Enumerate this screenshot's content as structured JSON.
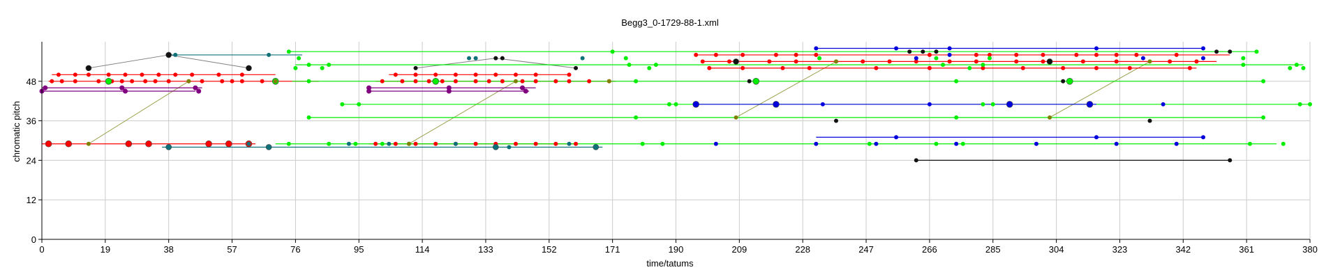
{
  "chart_data": {
    "type": "scatter",
    "title": "Begg3_0-1729-88-1.xml",
    "xlabel": "time/tatums",
    "ylabel": "chromatic pitch",
    "xlim": [
      0,
      380
    ],
    "ylim": [
      0,
      60
    ],
    "x_ticks": [
      0,
      19,
      38,
      57,
      76,
      95,
      114,
      133,
      152,
      171,
      190,
      209,
      228,
      247,
      266,
      285,
      304,
      323,
      342,
      361,
      380
    ],
    "y_ticks": [
      0,
      12,
      24,
      36,
      48
    ],
    "grid": true,
    "colors": {
      "red": "#ff0000",
      "green": "#00ee00",
      "blue": "#0000dd",
      "teal": "#0e7078",
      "purple": "#800080",
      "black": "#111111",
      "gray": "#808080",
      "olive": "#808000",
      "grid": "#cccccc"
    },
    "series": [
      {
        "color": "red",
        "size": 8,
        "lines": [
          [
            0,
            29,
            64,
            29
          ]
        ],
        "points": [
          [
            2,
            29
          ],
          [
            8,
            29
          ],
          [
            26,
            29
          ],
          [
            32,
            29
          ],
          [
            50,
            29
          ],
          [
            56,
            29
          ],
          [
            62,
            29
          ]
        ]
      },
      {
        "color": "red",
        "size": 5,
        "lines": [
          [
            3,
            50,
            70,
            50
          ],
          [
            2,
            48,
            83,
            48
          ]
        ],
        "points": [
          [
            5,
            50
          ],
          [
            10,
            50
          ],
          [
            14,
            50
          ],
          [
            20,
            50
          ],
          [
            25,
            50
          ],
          [
            30,
            50
          ],
          [
            35,
            50
          ],
          [
            40,
            50
          ],
          [
            45,
            50
          ],
          [
            53,
            50
          ],
          [
            60,
            50
          ],
          [
            3,
            48
          ],
          [
            6,
            48
          ],
          [
            10,
            48
          ],
          [
            17,
            48
          ],
          [
            21,
            48
          ],
          [
            24,
            48
          ],
          [
            27,
            48
          ],
          [
            31,
            48
          ],
          [
            34,
            48
          ],
          [
            38,
            48
          ],
          [
            44,
            48
          ],
          [
            48,
            48
          ],
          [
            54,
            48
          ],
          [
            57,
            48
          ],
          [
            60,
            48
          ],
          [
            66,
            48
          ],
          [
            106,
            50
          ],
          [
            112,
            50
          ],
          [
            118,
            50
          ],
          [
            124,
            50
          ],
          [
            130,
            50
          ],
          [
            136,
            50
          ],
          [
            142,
            50
          ],
          [
            148,
            50
          ],
          [
            158,
            50
          ],
          [
            102,
            48
          ],
          [
            108,
            48
          ],
          [
            112,
            48
          ],
          [
            116,
            48
          ],
          [
            120,
            48
          ],
          [
            124,
            48
          ],
          [
            130,
            48
          ],
          [
            134,
            48
          ],
          [
            138,
            48
          ],
          [
            144,
            48
          ],
          [
            148,
            48
          ],
          [
            154,
            48
          ],
          [
            158,
            48
          ],
          [
            164,
            48
          ],
          [
            170,
            48
          ],
          [
            100,
            29
          ],
          [
            106,
            29
          ],
          [
            112,
            29
          ],
          [
            118,
            29
          ],
          [
            124,
            29
          ],
          [
            130,
            29
          ],
          [
            136,
            29
          ],
          [
            142,
            29
          ],
          [
            148,
            29
          ],
          [
            154,
            29
          ],
          [
            160,
            29
          ]
        ]
      },
      {
        "color": "red",
        "size": 5,
        "lines": [
          [
            104,
            50,
            158,
            50
          ],
          [
            100,
            48,
            172,
            48
          ],
          [
            98,
            29,
            160,
            29
          ],
          [
            196,
            56,
            356,
            56
          ],
          [
            198,
            54,
            352,
            54
          ],
          [
            200,
            52,
            346,
            52
          ]
        ],
        "points": [
          [
            196,
            56
          ],
          [
            202,
            56
          ],
          [
            210,
            56
          ],
          [
            220,
            56
          ],
          [
            226,
            56
          ],
          [
            232,
            56
          ],
          [
            266,
            56
          ],
          [
            280,
            56
          ],
          [
            284,
            56
          ],
          [
            292,
            56
          ],
          [
            300,
            56
          ],
          [
            310,
            56
          ],
          [
            316,
            56
          ],
          [
            322,
            56
          ],
          [
            328,
            56
          ],
          [
            340,
            56
          ],
          [
            198,
            54
          ],
          [
            206,
            54
          ],
          [
            218,
            54
          ],
          [
            226,
            54
          ],
          [
            238,
            54
          ],
          [
            246,
            54
          ],
          [
            254,
            54
          ],
          [
            262,
            54
          ],
          [
            272,
            54
          ],
          [
            280,
            54
          ],
          [
            292,
            54
          ],
          [
            300,
            54
          ],
          [
            312,
            54
          ],
          [
            322,
            54
          ],
          [
            338,
            54
          ],
          [
            346,
            54
          ],
          [
            200,
            52
          ],
          [
            210,
            52
          ],
          [
            222,
            52
          ],
          [
            230,
            52
          ],
          [
            250,
            52
          ],
          [
            266,
            52
          ],
          [
            282,
            52
          ],
          [
            294,
            52
          ],
          [
            306,
            52
          ],
          [
            316,
            52
          ],
          [
            326,
            52
          ],
          [
            344,
            52
          ]
        ]
      },
      {
        "color": "green",
        "size": 5,
        "lines": [
          [
            74,
            57,
            364,
            57
          ],
          [
            76,
            53,
            378,
            53
          ],
          [
            75,
            48,
            366,
            48
          ],
          [
            90,
            41,
            380,
            41
          ],
          [
            80,
            37,
            366,
            37
          ],
          [
            70,
            29,
            370,
            29
          ]
        ],
        "points": [
          [
            74,
            57
          ],
          [
            171,
            57
          ],
          [
            364,
            57
          ],
          [
            77,
            55
          ],
          [
            175,
            55
          ],
          [
            233,
            55
          ],
          [
            268,
            55
          ],
          [
            284,
            55
          ],
          [
            360,
            55
          ],
          [
            80,
            53
          ],
          [
            86,
            53
          ],
          [
            84,
            52
          ],
          [
            76,
            52
          ],
          [
            176,
            53
          ],
          [
            182,
            52
          ],
          [
            184,
            53
          ],
          [
            270,
            53
          ],
          [
            278,
            52
          ],
          [
            282,
            53
          ],
          [
            360,
            53
          ],
          [
            374,
            52
          ],
          [
            376,
            53
          ],
          [
            378,
            52
          ],
          [
            80,
            48
          ],
          [
            178,
            48
          ],
          [
            274,
            48
          ],
          [
            366,
            48
          ],
          [
            90,
            41
          ],
          [
            95,
            41
          ],
          [
            188,
            41
          ],
          [
            190,
            41
          ],
          [
            282,
            41
          ],
          [
            285,
            41
          ],
          [
            377,
            41
          ],
          [
            380,
            41
          ],
          [
            80,
            37
          ],
          [
            178,
            37
          ],
          [
            274,
            37
          ],
          [
            366,
            37
          ],
          [
            74,
            29
          ],
          [
            86,
            29
          ],
          [
            94,
            29
          ],
          [
            102,
            29
          ],
          [
            110,
            29
          ],
          [
            180,
            29
          ],
          [
            186,
            29
          ],
          [
            248,
            29
          ],
          [
            268,
            29
          ],
          [
            276,
            29
          ],
          [
            362,
            29
          ],
          [
            372,
            29
          ]
        ]
      },
      {
        "color": "green",
        "size": 8,
        "lines": [],
        "points": [
          [
            20,
            48
          ],
          [
            70,
            48
          ],
          [
            118,
            48
          ],
          [
            214,
            48
          ],
          [
            308,
            48
          ]
        ]
      },
      {
        "color": "blue",
        "size": 5,
        "lines": [
          [
            232,
            58,
            348,
            58
          ],
          [
            232,
            31,
            348,
            31
          ]
        ],
        "points": [
          [
            232,
            58
          ],
          [
            256,
            58
          ],
          [
            272,
            58
          ],
          [
            316,
            58
          ],
          [
            348,
            58
          ],
          [
            262,
            55
          ],
          [
            272,
            56
          ],
          [
            330,
            55
          ],
          [
            348,
            55
          ],
          [
            234,
            41
          ],
          [
            266,
            41
          ],
          [
            336,
            41
          ],
          [
            202,
            29
          ],
          [
            232,
            29
          ],
          [
            250,
            29
          ],
          [
            256,
            31
          ],
          [
            274,
            29
          ],
          [
            298,
            29
          ],
          [
            316,
            31
          ],
          [
            322,
            29
          ],
          [
            340,
            29
          ],
          [
            348,
            31
          ]
        ]
      },
      {
        "color": "blue",
        "size": 8,
        "lines": [
          [
            196,
            41,
            316,
            41
          ]
        ],
        "points": [
          [
            196,
            41
          ],
          [
            220,
            41
          ],
          [
            290,
            41
          ],
          [
            314,
            41
          ]
        ]
      },
      {
        "color": "teal",
        "size": 5,
        "lines": [
          [
            38,
            56,
            78,
            56
          ],
          [
            36,
            28,
            168,
            28
          ]
        ],
        "points": [
          [
            38,
            56
          ],
          [
            40,
            56
          ],
          [
            68,
            56
          ],
          [
            162,
            55
          ],
          [
            128,
            55
          ],
          [
            130,
            55
          ],
          [
            62,
            29
          ],
          [
            68,
            28
          ],
          [
            92,
            29
          ],
          [
            104,
            29
          ],
          [
            124,
            29
          ],
          [
            140,
            28
          ],
          [
            158,
            29
          ],
          [
            166,
            28
          ]
        ]
      },
      {
        "color": "teal",
        "size": 7,
        "lines": [],
        "points": [
          [
            38,
            28
          ],
          [
            68,
            28
          ],
          [
            136,
            28
          ],
          [
            166,
            28
          ]
        ]
      },
      {
        "color": "purple",
        "size": 6,
        "lines": [
          [
            0,
            45,
            46,
            45
          ],
          [
            0,
            46,
            48,
            46
          ],
          [
            98,
            45,
            146,
            45
          ],
          [
            98,
            46,
            148,
            46
          ]
        ],
        "points": [
          [
            1,
            46
          ],
          [
            0,
            45
          ],
          [
            24,
            46
          ],
          [
            25,
            45
          ],
          [
            46,
            46
          ],
          [
            47,
            45
          ],
          [
            98,
            46
          ],
          [
            98,
            45
          ],
          [
            122,
            46
          ],
          [
            122,
            45
          ],
          [
            144,
            46
          ],
          [
            145,
            45
          ]
        ]
      },
      {
        "color": "black",
        "size": 5,
        "lines": [
          [
            262,
            24,
            356,
            24
          ]
        ],
        "points": [
          [
            112,
            52
          ],
          [
            160,
            52
          ],
          [
            138,
            55
          ],
          [
            136,
            55
          ],
          [
            212,
            48
          ],
          [
            306,
            48
          ],
          [
            238,
            36
          ],
          [
            332,
            36
          ],
          [
            262,
            24
          ],
          [
            356,
            24
          ],
          [
            260,
            57
          ],
          [
            264,
            57
          ],
          [
            268,
            57
          ],
          [
            352,
            57
          ],
          [
            356,
            57
          ]
        ]
      },
      {
        "color": "black",
        "size": 7,
        "lines": [],
        "points": [
          [
            14,
            52
          ],
          [
            38,
            56
          ],
          [
            62,
            52
          ],
          [
            208,
            54
          ],
          [
            302,
            54
          ]
        ]
      },
      {
        "color": "olive",
        "size": 5,
        "lines": [],
        "points": [
          [
            14,
            29
          ],
          [
            44,
            48
          ],
          [
            110,
            29
          ],
          [
            142,
            48
          ],
          [
            208,
            37
          ],
          [
            238,
            54
          ],
          [
            302,
            37
          ],
          [
            332,
            54
          ],
          [
            170,
            48
          ],
          [
            70,
            48
          ]
        ]
      }
    ],
    "gray_links": [
      [
        14,
        52,
        38,
        56
      ],
      [
        38,
        56,
        62,
        52
      ],
      [
        112,
        52,
        136,
        55
      ],
      [
        136,
        55,
        160,
        52
      ]
    ],
    "olive_links": [
      [
        14,
        29,
        44,
        48
      ],
      [
        110,
        29,
        142,
        48
      ],
      [
        208,
        37,
        238,
        54
      ],
      [
        302,
        37,
        332,
        54
      ]
    ]
  }
}
